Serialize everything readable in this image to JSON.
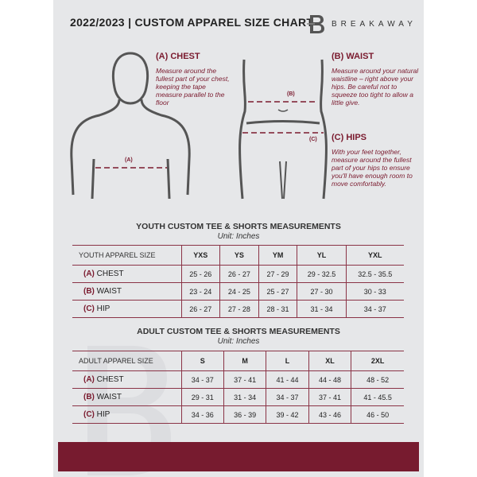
{
  "header": {
    "title": "2022/2023  |  CUSTOM APPAREL SIZE CHART",
    "brand": "BREAKAWAY",
    "logo_letter": "B"
  },
  "measures": {
    "chest": {
      "title": "(A) CHEST",
      "desc": "Measure around the fullest part of your chest, keeping the tape measure parallel to the floor",
      "marker": "(A)"
    },
    "waist": {
      "title": "(B) WAIST",
      "desc": "Measure around your natural waistline – right above your hips. Be careful not to squeeze too tight to allow a little give.",
      "marker": "(B)"
    },
    "hips": {
      "title": "(C) HIPS",
      "desc": "With your feet together, measure around the fullest part of your hips to ensure you'll have enough room to move comfortably.",
      "marker": "(C)"
    }
  },
  "accent": "#771b2f",
  "youth": {
    "caption": "YOUTH CUSTOM TEE & SHORTS MEASUREMENTS",
    "unit": "Unit: Inches",
    "header": "YOUTH APPAREL SIZE",
    "sizes": [
      "YXS",
      "YS",
      "YM",
      "YL",
      "YXL"
    ],
    "rows": [
      {
        "letter": "(A)",
        "label": "CHEST",
        "values": [
          "25 - 26",
          "26 - 27",
          "27 - 29",
          "29 - 32.5",
          "32.5 - 35.5"
        ]
      },
      {
        "letter": "(B)",
        "label": "WAIST",
        "values": [
          "23 - 24",
          "24 - 25",
          "25 - 27",
          "27 - 30",
          "30 - 33"
        ]
      },
      {
        "letter": "(C)",
        "label": "HIP",
        "values": [
          "26 - 27",
          "27 - 28",
          "28 - 31",
          "31 - 34",
          "34 - 37"
        ]
      }
    ]
  },
  "adult": {
    "caption": "ADULT CUSTOM TEE & SHORTS MEASUREMENTS",
    "unit": "Unit: Inches",
    "header": "ADULT APPAREL SIZE",
    "sizes": [
      "S",
      "M",
      "L",
      "XL",
      "2XL"
    ],
    "rows": [
      {
        "letter": "(A)",
        "label": "CHEST",
        "values": [
          "34 - 37",
          "37 - 41",
          "41 - 44",
          "44 - 48",
          "48 - 52"
        ]
      },
      {
        "letter": "(B)",
        "label": "WAIST",
        "values": [
          "29 - 31",
          "31 - 34",
          "34 - 37",
          "37 - 41",
          "41 - 45.5"
        ]
      },
      {
        "letter": "(C)",
        "label": "HIP",
        "values": [
          "34 - 36",
          "36 - 39",
          "39 - 42",
          "43 - 46",
          "46 - 50"
        ]
      }
    ]
  }
}
